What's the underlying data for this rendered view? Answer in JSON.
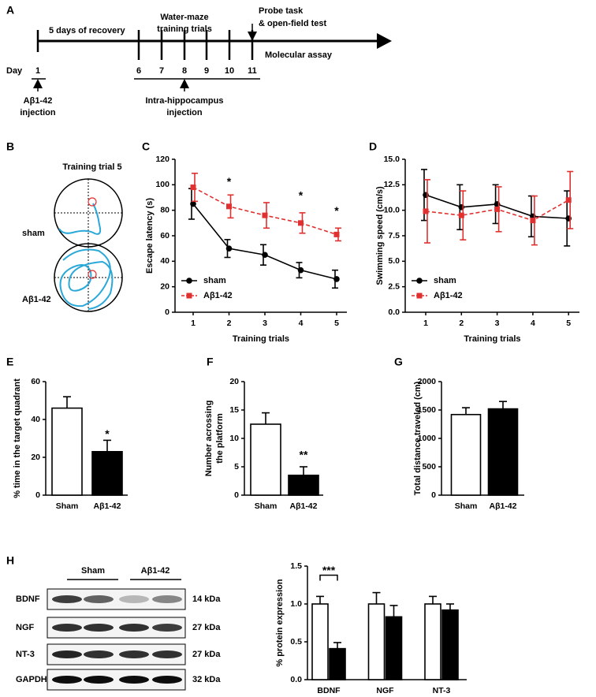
{
  "timeline": {
    "panel": "A",
    "day_label": "Day",
    "days": [
      1,
      6,
      7,
      8,
      9,
      10,
      11
    ],
    "recovery": "5 days of recovery",
    "training": [
      "Water-maze",
      "training trials"
    ],
    "probe": [
      "Probe task",
      "& open-field test"
    ],
    "molecular": "Molecular assay",
    "abeta_injection": [
      "Aβ1-42",
      "injection"
    ],
    "intra_injection": [
      "Intra-hippocampus",
      "injection"
    ]
  },
  "maze": {
    "panel": "B",
    "title": "Training trial 5",
    "groups": [
      "sham",
      "Aβ1-42"
    ]
  },
  "blot": {
    "panel": "H",
    "groups": [
      "Sham",
      "Aβ1-42"
    ],
    "proteins": [
      "BDNF",
      "NGF",
      "NT-3",
      "GAPDH"
    ],
    "sizes": [
      "14 kDa",
      "27 kDa",
      "27 kDa",
      "32 kDa"
    ]
  },
  "chart_data": [
    {
      "type": "line",
      "panel": "C",
      "xlabel": "Training trials",
      "ylabel": [
        "Escape latency (s)"
      ],
      "categories": [
        1,
        2,
        3,
        4,
        5
      ],
      "ylim": [
        0,
        120
      ],
      "yticks": [
        0,
        20,
        40,
        60,
        80,
        100,
        120
      ],
      "series": [
        {
          "name": "sham",
          "color": "#000000",
          "marker": "circle",
          "dashed": false,
          "values": [
            85,
            50,
            45,
            33,
            26
          ],
          "errors": [
            12,
            7,
            8,
            6,
            7
          ]
        },
        {
          "name": "Aβ1-42",
          "color": "#e03030",
          "marker": "square",
          "dashed": true,
          "values": [
            98,
            83,
            76,
            70,
            61
          ],
          "errors": [
            11,
            9,
            10,
            8,
            5
          ]
        }
      ],
      "annotations": [
        {
          "text": "*",
          "x": 2,
          "y": 102
        },
        {
          "text": "*",
          "x": 4,
          "y": 91
        },
        {
          "text": "*",
          "x": 5,
          "y": 79
        }
      ]
    },
    {
      "type": "line",
      "panel": "D",
      "xlabel": "Training trials",
      "ylabel": [
        "Swimming speed (cm/s)"
      ],
      "categories": [
        1,
        2,
        3,
        4,
        5
      ],
      "ylim": [
        0,
        15
      ],
      "yticks": [
        {
          "value": 0,
          "label": "0.0"
        },
        {
          "value": 2.5,
          "label": "2.5"
        },
        {
          "value": 5,
          "label": "5.0"
        },
        {
          "value": 7.5,
          "label": "7.5"
        },
        {
          "value": 10,
          "label": "10.0"
        },
        {
          "value": 12.5,
          "label": "12.5"
        },
        {
          "value": 15,
          "label": "15.0"
        }
      ],
      "series": [
        {
          "name": "sham",
          "color": "#000000",
          "marker": "circle",
          "dashed": false,
          "values": [
            11.5,
            10.3,
            10.6,
            9.4,
            9.2
          ],
          "errors": [
            2.5,
            2.2,
            1.9,
            2.0,
            2.7
          ]
        },
        {
          "name": "Aβ1-42",
          "color": "#e03030",
          "marker": "square",
          "dashed": true,
          "values": [
            9.9,
            9.5,
            10.1,
            9.0,
            11.0
          ],
          "errors": [
            3.1,
            2.4,
            2.2,
            2.4,
            2.8
          ]
        }
      ]
    },
    {
      "type": "bar",
      "panel": "E",
      "ylabel": [
        "% time in the target quadrant"
      ],
      "categories": [
        "Sham",
        "Aβ1-42"
      ],
      "ylim": [
        0,
        60
      ],
      "yticks": [
        0,
        20,
        40,
        60
      ],
      "series": [
        {
          "colors": [
            "#ffffff",
            "#000000"
          ],
          "values": [
            46,
            23
          ],
          "errors": [
            6,
            6
          ]
        }
      ],
      "annotations": [
        {
          "text": "*",
          "x": "Aβ1-42",
          "y": 32
        }
      ]
    },
    {
      "type": "bar",
      "panel": "F",
      "ylabel": [
        "Number acrossing",
        "the platform"
      ],
      "categories": [
        "Sham",
        "Aβ1-42"
      ],
      "ylim": [
        0,
        20
      ],
      "yticks": [
        0,
        5,
        10,
        15,
        20
      ],
      "series": [
        {
          "colors": [
            "#ffffff",
            "#000000"
          ],
          "values": [
            12.5,
            3.5
          ],
          "errors": [
            2,
            1.5
          ]
        }
      ],
      "annotations": [
        {
          "text": "**",
          "x": "Aβ1-42",
          "y": 7
        }
      ]
    },
    {
      "type": "bar",
      "panel": "G",
      "ylabel": [
        "Total distance traveled (cm)"
      ],
      "categories": [
        "Sham",
        "Aβ1-42"
      ],
      "ylim": [
        0,
        2000
      ],
      "yticks": [
        0,
        500,
        1000,
        1500,
        2000
      ],
      "series": [
        {
          "colors": [
            "#ffffff",
            "#000000"
          ],
          "values": [
            1420,
            1520
          ],
          "errors": [
            120,
            130
          ]
        }
      ]
    },
    {
      "type": "bar",
      "ylabel": [
        "% protein expression"
      ],
      "categories": [
        "BDNF",
        "NGF",
        "NT-3"
      ],
      "ylim": [
        0,
        1.5
      ],
      "yticks": [
        {
          "value": 0,
          "label": "0.0"
        },
        {
          "value": 0.5,
          "label": "0.5"
        },
        {
          "value": 1,
          "label": "1.0"
        },
        {
          "value": 1.5,
          "label": "1.5"
        }
      ],
      "series": [
        {
          "color": "#ffffff",
          "values": [
            1.0,
            1.0,
            1.0
          ],
          "errors": [
            0.1,
            0.15,
            0.1
          ]
        },
        {
          "color": "#000000",
          "values": [
            0.41,
            0.83,
            0.92
          ],
          "errors": [
            0.08,
            0.15,
            0.08
          ]
        }
      ],
      "annotations": [
        {
          "text": "***",
          "x": "BDNF",
          "y": 1.38,
          "bracket": true
        }
      ]
    }
  ]
}
